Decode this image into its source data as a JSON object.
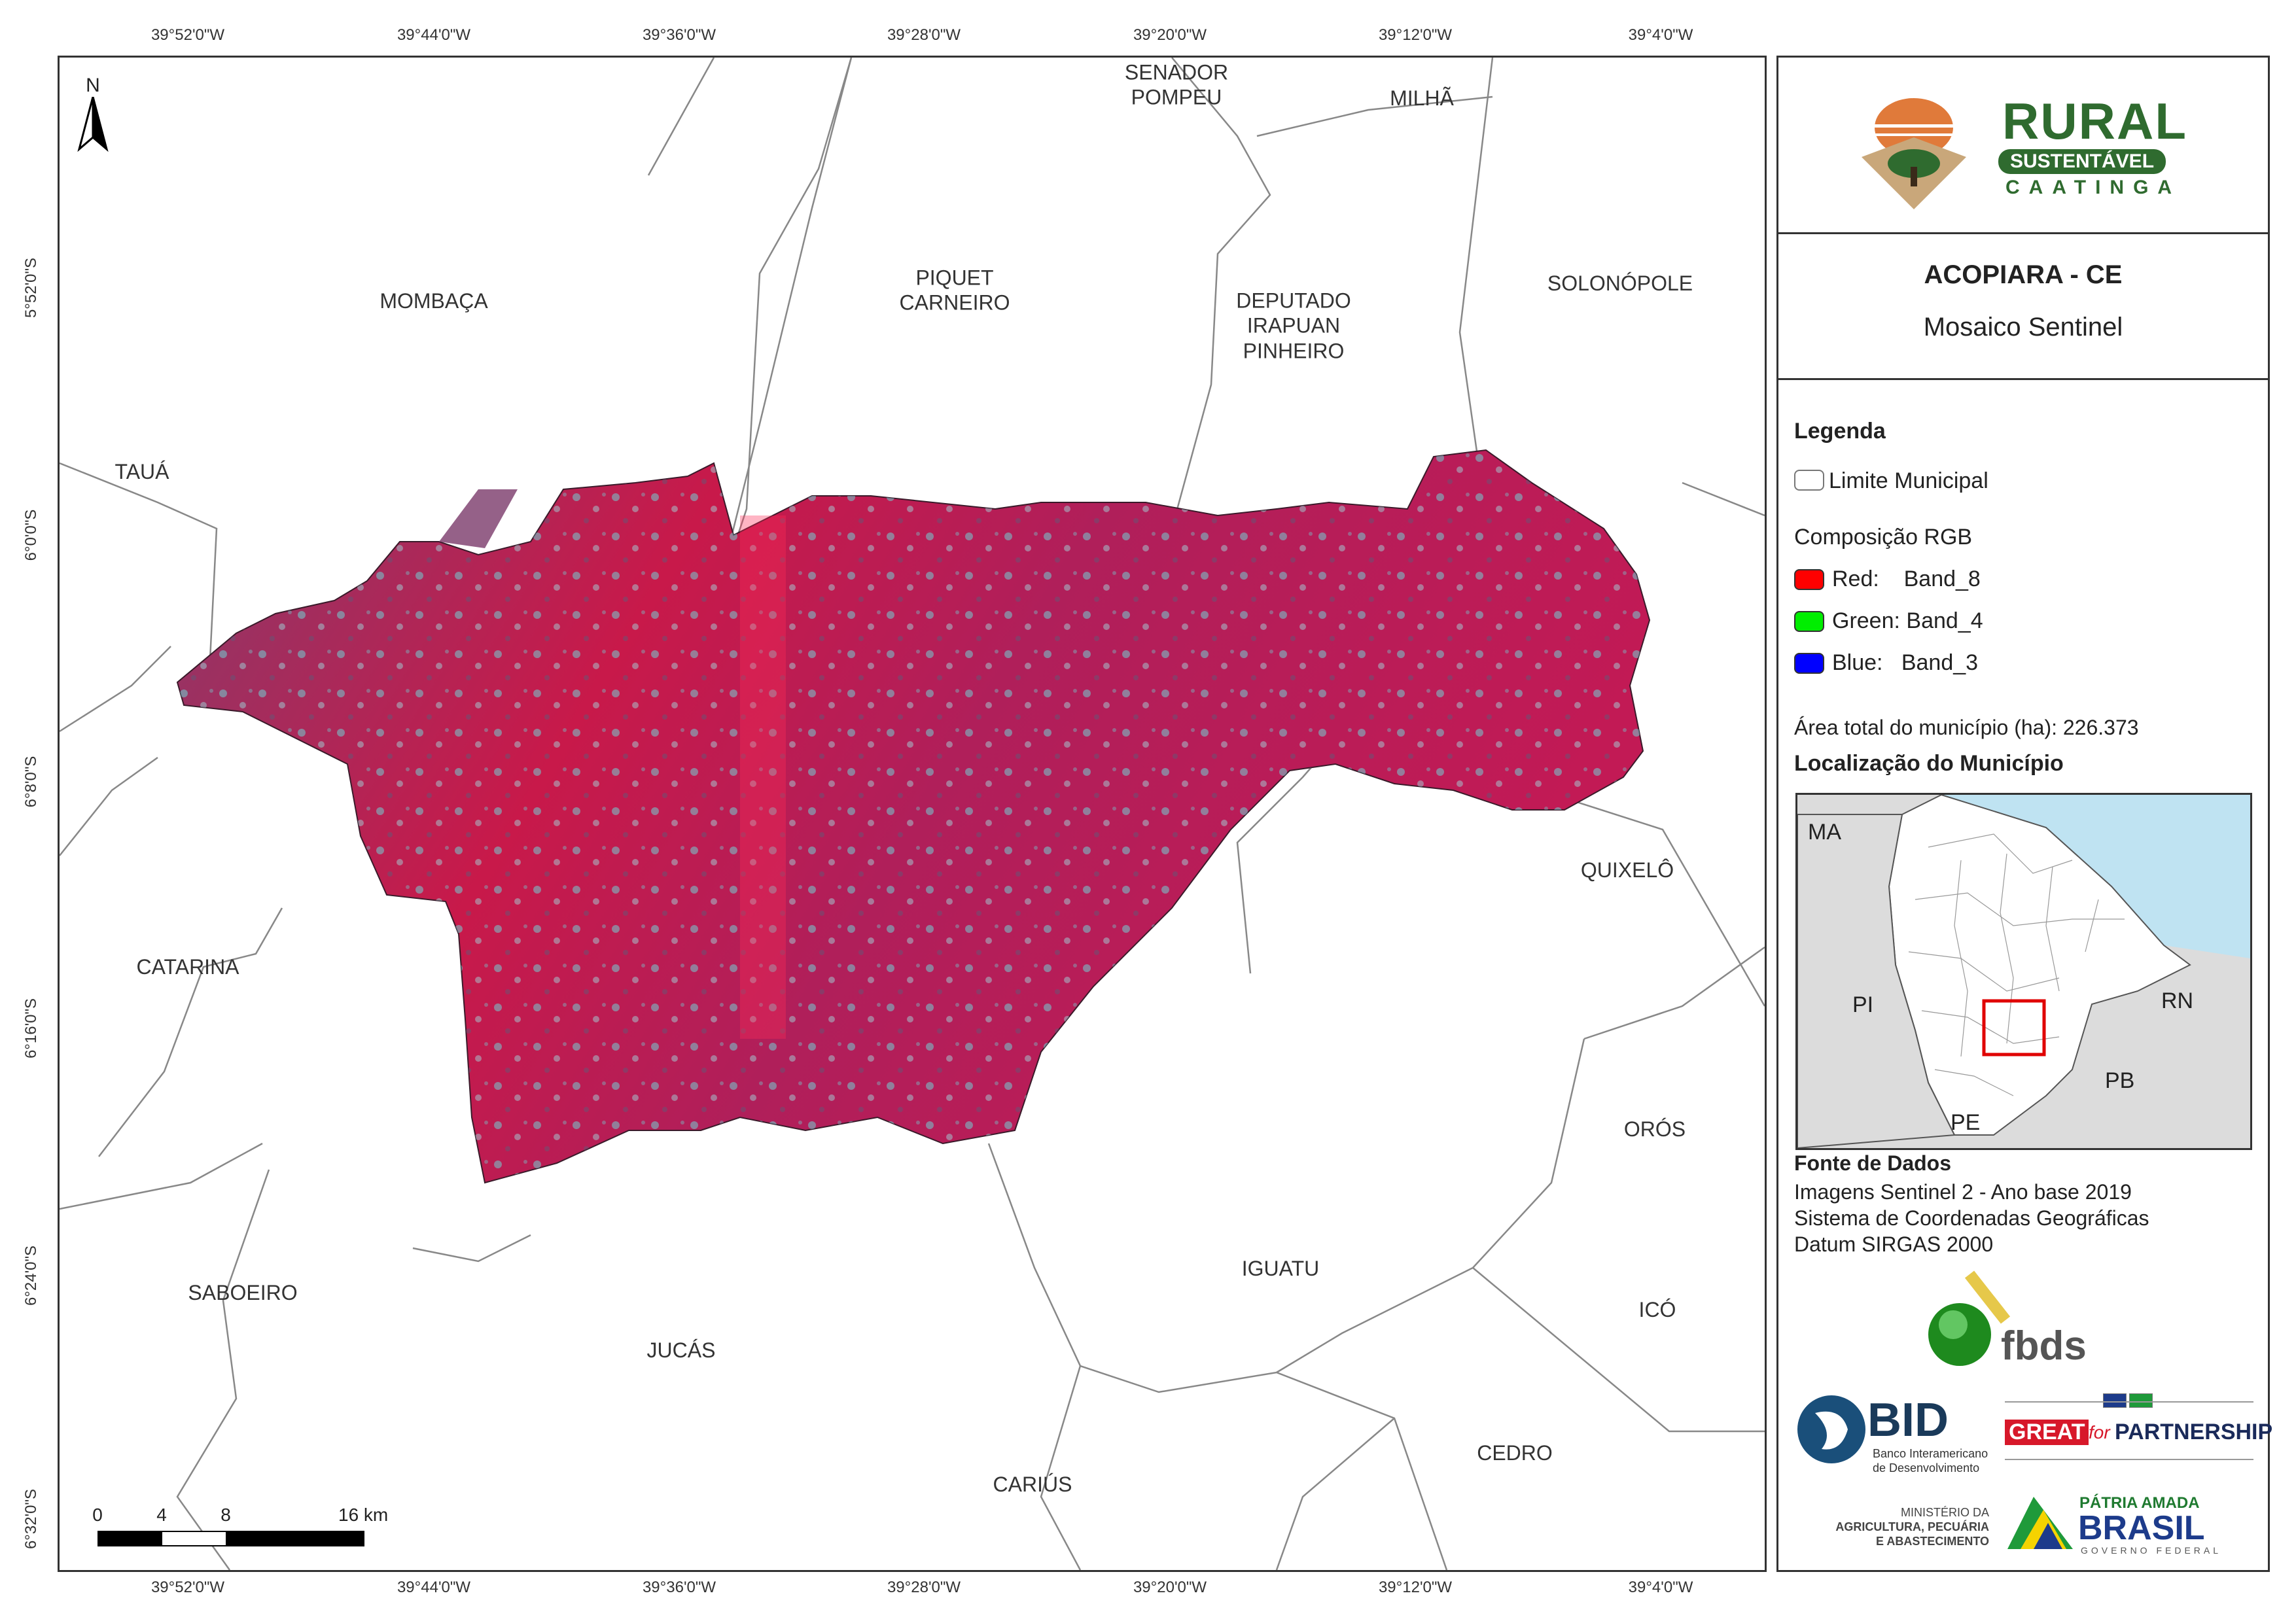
{
  "map": {
    "coords_top": [
      "39°52'0\"W",
      "39°44'0\"W",
      "39°36'0\"W",
      "39°28'0\"W",
      "39°20'0\"W",
      "39°12'0\"W",
      "39°4'0\"W"
    ],
    "coords_bottom": [
      "39°52'0\"W",
      "39°44'0\"W",
      "39°36'0\"W",
      "39°28'0\"W",
      "39°20'0\"W",
      "39°12'0\"W",
      "39°4'0\"W"
    ],
    "coords_left": [
      "5°52'0\"S",
      "6°0'0\"S",
      "6°8'0\"S",
      "6°16'0\"S",
      "6°24'0\"S",
      "6°32'0\"S"
    ],
    "north_label": "N",
    "municipalities": {
      "senador_pompeu": "SENADOR POMPEU",
      "milha": "MILHÃ",
      "mombaca": "MOMBAÇA",
      "piquet_carneiro": "PIQUET CARNEIRO",
      "deputado_irapuan_pinheiro": "DEPUTADO IRAPUAN PINHEIRO",
      "solonopole": "SOLONÓPOLE",
      "taua": "TAUÁ",
      "quixelo": "QUIXELÔ",
      "catarina": "CATARINA",
      "oros": "ORÓS",
      "saboeiro": "SABOEIRO",
      "iguatu": "IGUATU",
      "jucas": "JUCÁS",
      "ico": "ICÓ",
      "cedro": "CEDRO",
      "carius": "CARIÚS"
    },
    "scale": {
      "labels": [
        "0",
        "4",
        "8",
        "16 km"
      ]
    }
  },
  "panel": {
    "logo": {
      "line1": "RURAL",
      "line2": "SUSTENTÁVEL",
      "line3": "CAATINGA"
    },
    "title": "ACOPIARA - CE",
    "subtitle": "Mosaico Sentinel",
    "legend_title": "Legenda",
    "limit_label": "Limite Municipal",
    "rgb_title": "Composição RGB",
    "rgb": [
      {
        "label": "Red:    Band_8",
        "color": "#ff0000"
      },
      {
        "label": "Green: Band_4",
        "color": "#00ee00"
      },
      {
        "label": "Blue:   Band_3",
        "color": "#0000ff"
      }
    ],
    "area_text": "Área total do município (ha): 226.373",
    "location_title": "Localização do Município",
    "inset_labels": {
      "ma": "MA",
      "pi": "PI",
      "rn": "RN",
      "pb": "PB",
      "pe": "PE"
    },
    "sources_title": "Fonte de Dados",
    "sources": [
      "Imagens Sentinel 2 - Ano base 2019",
      "Sistema de Coordenadas Geográficas",
      "Datum SIRGAS 2000"
    ],
    "fbds": "fbds",
    "bid": {
      "name": "BID",
      "sub1": "Banco Interamericano",
      "sub2": "de Desenvolvimento"
    },
    "great": {
      "word1": "GREAT",
      "word2": "for",
      "word3": "PARTNERSHIP"
    },
    "ministerio": [
      "MINISTÉRIO DA",
      "AGRICULTURA, PECUÁRIA",
      "E ABASTECIMENTO"
    ],
    "brasil": {
      "line1": "PÁTRIA AMADA",
      "line2": "BRASIL",
      "line3": "GOVERNO FEDERAL"
    }
  },
  "colors": {
    "raster_red": "#c8194a",
    "raster_cyan": "#6fd6d8",
    "boundary": "#888888",
    "logo_green": "#2f6b2f",
    "inset_water": "#bfe3f2"
  }
}
